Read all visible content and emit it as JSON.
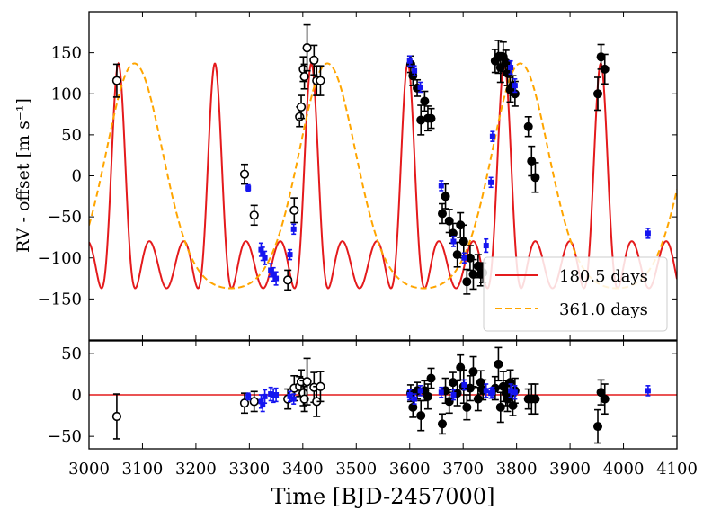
{
  "chart_data": {
    "type": "scatter",
    "xlabel": "Time [BJD-2457000]",
    "xlim": [
      3000,
      4100
    ],
    "xticks": [
      3000,
      3100,
      3200,
      3300,
      3400,
      3500,
      3600,
      3700,
      3800,
      3900,
      4000,
      4100
    ],
    "legend": {
      "placement": "lower-right",
      "entries": [
        {
          "label": "180.5 days",
          "color": "#e41a1c",
          "style": "solid"
        },
        {
          "label": "361.0 days",
          "color": "#ffa500",
          "style": "dashed"
        }
      ]
    },
    "colors": {
      "model_short": "#e41a1c",
      "model_long": "#ffa500",
      "open_points": "#000000",
      "filled_points": "#000000",
      "blue_points": "#1515f0"
    },
    "panels": [
      {
        "id": "rv",
        "ylabel": "RV - offset [m s⁻¹]",
        "ylim": [
          -200,
          200
        ],
        "yticks": [
          -150,
          -100,
          -50,
          0,
          50,
          100,
          150
        ],
        "models": [
          {
            "label": "180.5 days",
            "period": 180.5,
            "amplitude": 137,
            "tpeak": 3055,
            "shape": 2.3,
            "color": "#e41a1c",
            "style": "solid"
          },
          {
            "label": "361.0 days",
            "period": 361.0,
            "amplitude": 137,
            "tpeak": 3085,
            "shape": 0.55,
            "color": "#ffa500",
            "style": "dashed"
          }
        ],
        "series": [
          {
            "marker": "open-circle",
            "points": [
              [
                3052,
                116,
                20
              ],
              [
                3291,
                2,
                12
              ],
              [
                3309,
                -48,
                12
              ],
              [
                3372,
                -127,
                12
              ],
              [
                3384,
                -42,
                15
              ],
              [
                3394,
                72,
                12
              ],
              [
                3397,
                84,
                14
              ],
              [
                3401,
                130,
                15
              ],
              [
                3403,
                121,
                15
              ],
              [
                3408,
                156,
                28
              ],
              [
                3421,
                141,
                18
              ],
              [
                3426,
                116,
                18
              ],
              [
                3433,
                116,
                18
              ]
            ]
          },
          {
            "marker": "filled-circle",
            "points": [
              [
                3602,
                136,
                10
              ],
              [
                3606,
                122,
                12
              ],
              [
                3614,
                107,
                10
              ],
              [
                3621,
                68,
                18
              ],
              [
                3628,
                91,
                12
              ],
              [
                3634,
                70,
                15
              ],
              [
                3640,
                70,
                12
              ],
              [
                3661,
                -46,
                12
              ],
              [
                3667,
                -25,
                15
              ],
              [
                3674,
                -55,
                14
              ],
              [
                3681,
                -70,
                12
              ],
              [
                3689,
                -96,
                15
              ],
              [
                3695,
                -60,
                15
              ],
              [
                3701,
                -80,
                20
              ],
              [
                3707,
                -129,
                15
              ],
              [
                3713,
                -100,
                15
              ],
              [
                3719,
                -120,
                18
              ],
              [
                3728,
                -110,
                14
              ],
              [
                3733,
                -120,
                14
              ],
              [
                3737,
                -118,
                12
              ],
              [
                3760,
                140,
                14
              ],
              [
                3766,
                145,
                20
              ],
              [
                3770,
                132,
                18
              ],
              [
                3775,
                145,
                18
              ],
              [
                3780,
                138,
                15
              ],
              [
                3783,
                125,
                15
              ],
              [
                3788,
                105,
                15
              ],
              [
                3793,
                110,
                12
              ],
              [
                3797,
                100,
                15
              ],
              [
                3822,
                60,
                12
              ],
              [
                3828,
                18,
                18
              ],
              [
                3835,
                -2,
                18
              ],
              [
                3952,
                100,
                20
              ],
              [
                3958,
                145,
                15
              ],
              [
                3965,
                130,
                18
              ]
            ]
          },
          {
            "marker": "blue-square",
            "points": [
              [
                3298,
                -15,
                4
              ],
              [
                3322,
                -90,
                8
              ],
              [
                3325,
                -95,
                8
              ],
              [
                3329,
                -100,
                8
              ],
              [
                3340,
                -115,
                8
              ],
              [
                3345,
                -120,
                8
              ],
              [
                3350,
                -125,
                8
              ],
              [
                3376,
                -96,
                6
              ],
              [
                3383,
                -65,
                6
              ],
              [
                3600,
                140,
                6
              ],
              [
                3609,
                128,
                6
              ],
              [
                3620,
                108,
                6
              ],
              [
                3659,
                -12,
                6
              ],
              [
                3682,
                -80,
                6
              ],
              [
                3702,
                -100,
                6
              ],
              [
                3743,
                -85,
                8
              ],
              [
                3752,
                -8,
                6
              ],
              [
                3755,
                48,
                6
              ],
              [
                3789,
                132,
                8
              ],
              [
                3797,
                110,
                8
              ],
              [
                4046,
                -70,
                6
              ]
            ]
          }
        ]
      },
      {
        "id": "residuals",
        "ylabel": "",
        "ylim": [
          -65,
          65
        ],
        "yticks": [
          -50,
          0,
          50
        ],
        "zero_line_color": "#e41a1c",
        "series": [
          {
            "marker": "open-circle",
            "points": [
              [
                3052,
                -26,
                27
              ],
              [
                3291,
                -10,
                12
              ],
              [
                3309,
                -8,
                12
              ],
              [
                3372,
                -5,
                12
              ],
              [
                3384,
                8,
                15
              ],
              [
                3394,
                10,
                12
              ],
              [
                3397,
                16,
                14
              ],
              [
                3401,
                2,
                15
              ],
              [
                3403,
                -5,
                15
              ],
              [
                3408,
                16,
                28
              ],
              [
                3421,
                9,
                18
              ],
              [
                3426,
                -8,
                18
              ],
              [
                3433,
                10,
                18
              ]
            ]
          },
          {
            "marker": "filled-circle",
            "points": [
              [
                3602,
                2,
                10
              ],
              [
                3606,
                -15,
                12
              ],
              [
                3614,
                5,
                10
              ],
              [
                3621,
                -25,
                18
              ],
              [
                3628,
                5,
                12
              ],
              [
                3634,
                -2,
                15
              ],
              [
                3640,
                20,
                12
              ],
              [
                3661,
                -35,
                12
              ],
              [
                3667,
                5,
                15
              ],
              [
                3674,
                -8,
                14
              ],
              [
                3681,
                15,
                12
              ],
              [
                3689,
                2,
                15
              ],
              [
                3695,
                33,
                15
              ],
              [
                3701,
                10,
                20
              ],
              [
                3707,
                -15,
                15
              ],
              [
                3713,
                8,
                15
              ],
              [
                3719,
                28,
                18
              ],
              [
                3728,
                -5,
                14
              ],
              [
                3733,
                15,
                14
              ],
              [
                3737,
                6,
                12
              ],
              [
                3760,
                8,
                14
              ],
              [
                3766,
                37,
                20
              ],
              [
                3770,
                -15,
                18
              ],
              [
                3775,
                10,
                18
              ],
              [
                3780,
                2,
                15
              ],
              [
                3783,
                -5,
                15
              ],
              [
                3788,
                15,
                15
              ],
              [
                3793,
                -13,
                12
              ],
              [
                3797,
                5,
                15
              ],
              [
                3822,
                -5,
                12
              ],
              [
                3828,
                -5,
                18
              ],
              [
                3835,
                -5,
                18
              ],
              [
                3952,
                -38,
                20
              ],
              [
                3958,
                3,
                15
              ],
              [
                3965,
                -5,
                18
              ]
            ]
          },
          {
            "marker": "blue-square",
            "points": [
              [
                3298,
                -2,
                4
              ],
              [
                3322,
                -8,
                8
              ],
              [
                3325,
                -12,
                8
              ],
              [
                3329,
                -2,
                8
              ],
              [
                3340,
                1,
                8
              ],
              [
                3345,
                -1,
                8
              ],
              [
                3350,
                0,
                8
              ],
              [
                3376,
                -2,
                6
              ],
              [
                3383,
                -5,
                6
              ],
              [
                3600,
                0,
                6
              ],
              [
                3609,
                -5,
                6
              ],
              [
                3620,
                5,
                6
              ],
              [
                3659,
                3,
                6
              ],
              [
                3682,
                0,
                6
              ],
              [
                3702,
                12,
                6
              ],
              [
                3743,
                5,
                8
              ],
              [
                3752,
                2,
                6
              ],
              [
                3755,
                3,
                6
              ],
              [
                3789,
                5,
                8
              ],
              [
                3797,
                3,
                8
              ],
              [
                4046,
                5,
                6
              ]
            ]
          }
        ]
      }
    ]
  }
}
